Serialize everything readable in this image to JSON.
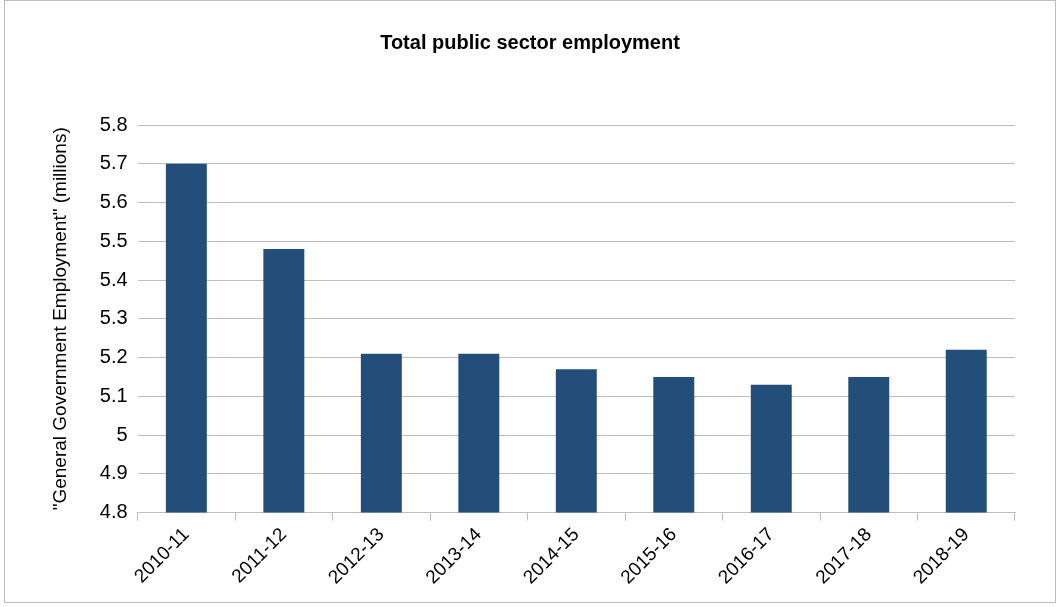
{
  "chart_data": {
    "type": "bar",
    "title": "Total public sector employment",
    "ylabel": "\"General Government Employment\" (millions)",
    "categories": [
      "2010-11",
      "2011-12",
      "2012-13",
      "2013-14",
      "2014-15",
      "2015-16",
      "2016-17",
      "2017-18",
      "2018-19"
    ],
    "values": [
      5.7,
      5.48,
      5.21,
      5.21,
      5.17,
      5.15,
      5.13,
      5.15,
      5.22
    ],
    "color": "#234e79",
    "ylim": [
      4.8,
      5.8
    ],
    "yticks": [
      4.8,
      4.9,
      5,
      5.1,
      5.2,
      5.3,
      5.4,
      5.5,
      5.6,
      5.7,
      5.8
    ],
    "grid": "y",
    "legend": false
  }
}
